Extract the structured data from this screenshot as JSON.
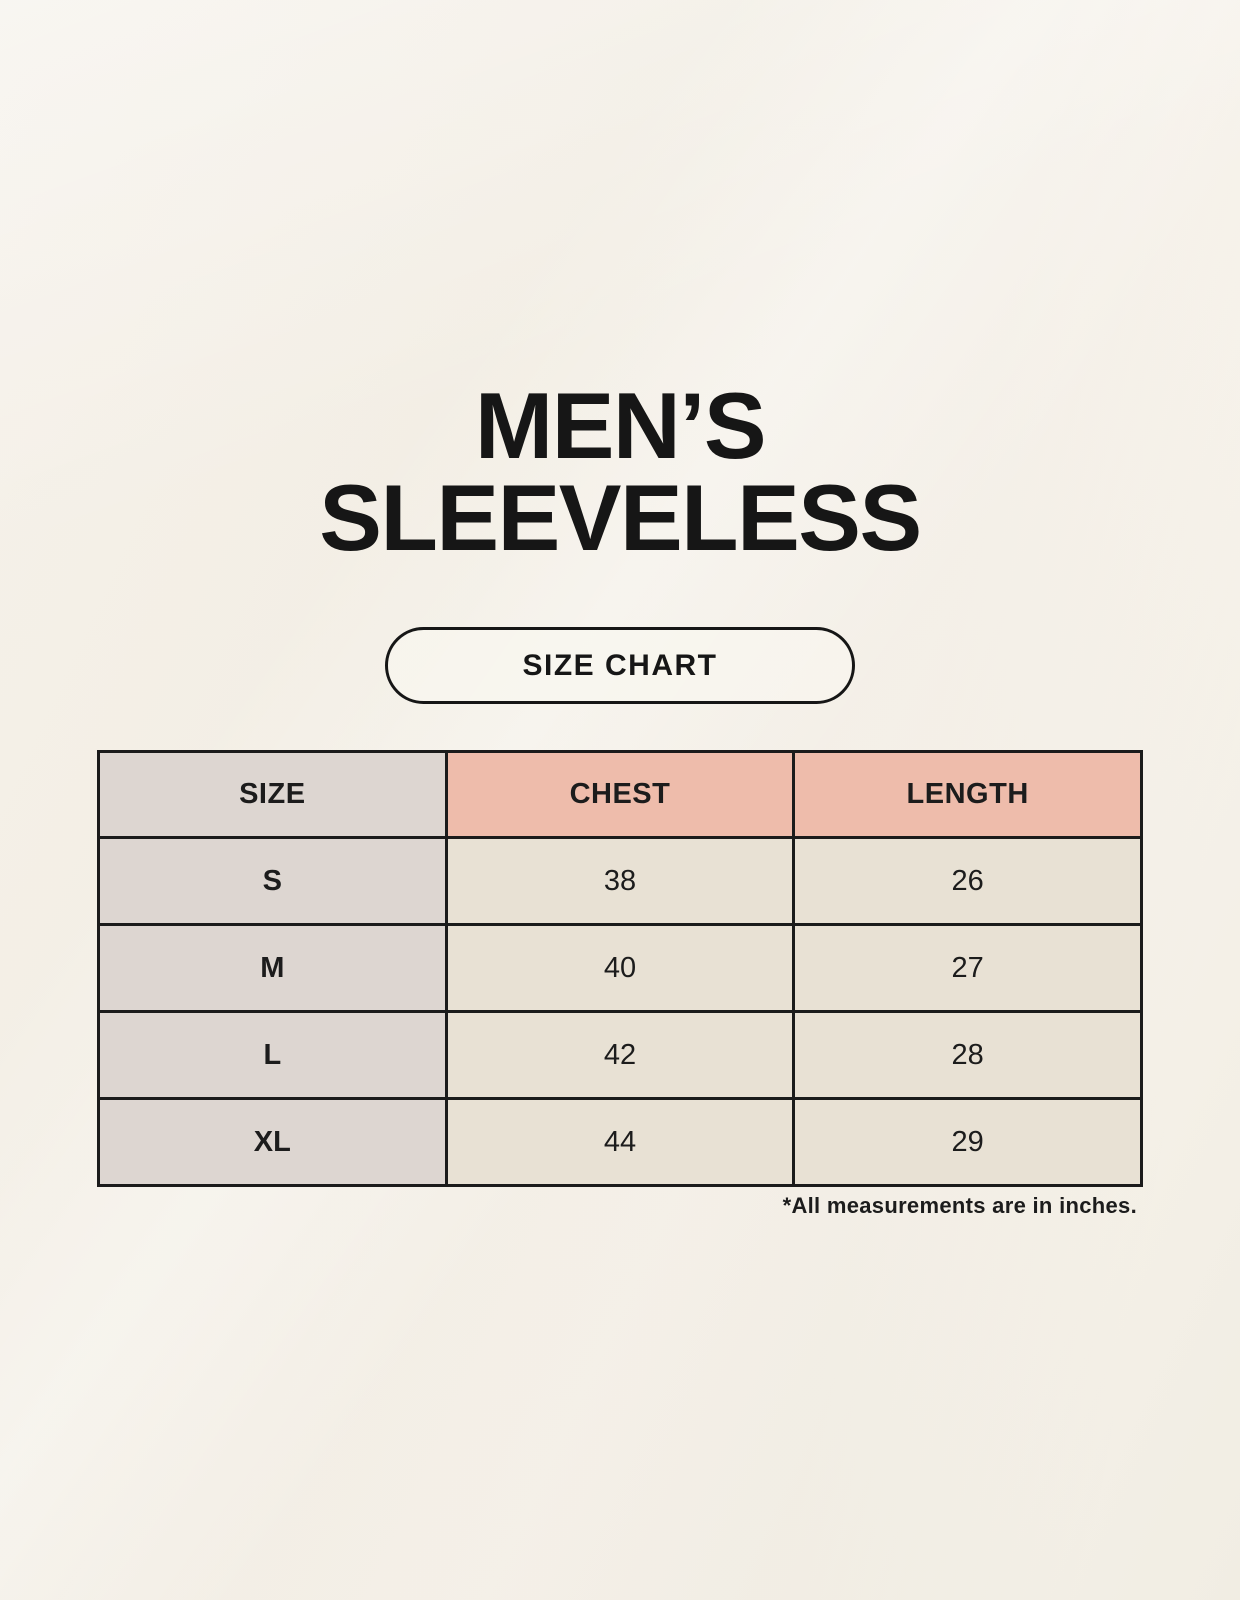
{
  "page": {
    "title_line1": "MEN’S",
    "title_line2": "SLEEVELESS",
    "size_chart_button_label": "SIZE CHART",
    "footnote": "*All measurements are in inches."
  },
  "table": {
    "headers": [
      "SIZE",
      "CHEST",
      "LENGTH"
    ],
    "rows": [
      {
        "size": "S",
        "chest": "38",
        "length": "26"
      },
      {
        "size": "M",
        "chest": "40",
        "length": "27"
      },
      {
        "size": "L",
        "chest": "42",
        "length": "28"
      },
      {
        "size": "XL",
        "chest": "44",
        "length": "29"
      }
    ]
  },
  "colors": {
    "background": "#f6f2e9",
    "header_accent_bg": "#eebcab",
    "label_col_bg": "#ddd6d1",
    "data_cell_bg": "#e8e1d4",
    "border": "#1b1b1b",
    "text": "#1c1c1c"
  },
  "chart_data": {
    "type": "table",
    "title": "MEN’S SLEEVELESS",
    "subtitle": "SIZE CHART",
    "columns": [
      "SIZE",
      "CHEST",
      "LENGTH"
    ],
    "rows": [
      [
        "S",
        38,
        26
      ],
      [
        "M",
        40,
        27
      ],
      [
        "L",
        42,
        28
      ],
      [
        "XL",
        44,
        29
      ]
    ],
    "units": "inches",
    "note": "*All measurements are in inches."
  }
}
